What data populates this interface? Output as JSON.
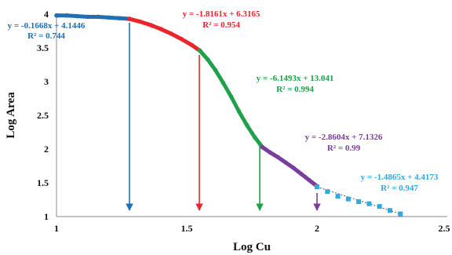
{
  "chart_data": {
    "type": "scatter",
    "xlabel": "Log Cu",
    "ylabel": "Log Area",
    "xlim": [
      1,
      2.5
    ],
    "ylim": [
      1,
      4
    ],
    "x_ticks": [
      "1",
      "1.5",
      "2",
      "2.5"
    ],
    "y_ticks": [
      "1",
      "1.5",
      "2",
      "2.5",
      "3",
      "3.5",
      "4"
    ],
    "grid": false,
    "series": [
      {
        "color": "#1f6fb4",
        "marker": "circle",
        "x": [
          1.0,
          1.04,
          1.08,
          1.12,
          1.16,
          1.2,
          1.24,
          1.28
        ],
        "y": [
          3.98,
          3.98,
          3.97,
          3.96,
          3.96,
          3.95,
          3.94,
          3.93
        ],
        "equation": "y = -0.1668x + 4.1446",
        "r2": "R² = 0.744"
      },
      {
        "color": "#e8262b",
        "marker": "circle",
        "x": [
          1.28,
          1.32,
          1.36,
          1.4,
          1.44,
          1.48,
          1.52,
          1.55
        ],
        "y": [
          3.93,
          3.89,
          3.84,
          3.78,
          3.71,
          3.63,
          3.54,
          3.46
        ],
        "equation": "y = -1.8161x + 6.3165",
        "r2": "R² = 0.954"
      },
      {
        "color": "#1fa04a",
        "marker": "circle",
        "x": [
          1.55,
          1.58,
          1.61,
          1.64,
          1.67,
          1.7,
          1.73,
          1.76,
          1.79
        ],
        "y": [
          3.46,
          3.33,
          3.17,
          2.98,
          2.78,
          2.56,
          2.36,
          2.18,
          2.03
        ],
        "equation": "y = -6.1493x + 13.041",
        "r2": "R² = 0.994"
      },
      {
        "color": "#7a3f9a",
        "marker": "circle",
        "x": [
          1.79,
          1.82,
          1.85,
          1.88,
          1.91,
          1.94,
          1.97,
          2.0
        ],
        "y": [
          2.03,
          1.95,
          1.88,
          1.8,
          1.72,
          1.63,
          1.54,
          1.45
        ],
        "equation": "y = -2.8604x + 7.1326",
        "r2": "R² = 0.99"
      },
      {
        "color": "#32a8e0",
        "marker": "square",
        "x": [
          2.0,
          2.04,
          2.08,
          2.12,
          2.16,
          2.2,
          2.24,
          2.28,
          2.32
        ],
        "y": [
          1.44,
          1.37,
          1.3,
          1.26,
          1.22,
          1.19,
          1.15,
          1.09,
          1.04
        ],
        "equation": "y = -1.4865x + 4.4173",
        "r2": "R² = 0.947"
      }
    ],
    "breakpoints": [
      {
        "x": 1.28,
        "y": 3.93,
        "color": "#1f6fb4"
      },
      {
        "x": 1.55,
        "y": 3.46,
        "color": "#e8262b"
      },
      {
        "x": 1.79,
        "y": 2.03,
        "color": "#1fa04a"
      },
      {
        "x": 2.0,
        "y": 1.45,
        "color": "#7a3f9a"
      }
    ]
  }
}
